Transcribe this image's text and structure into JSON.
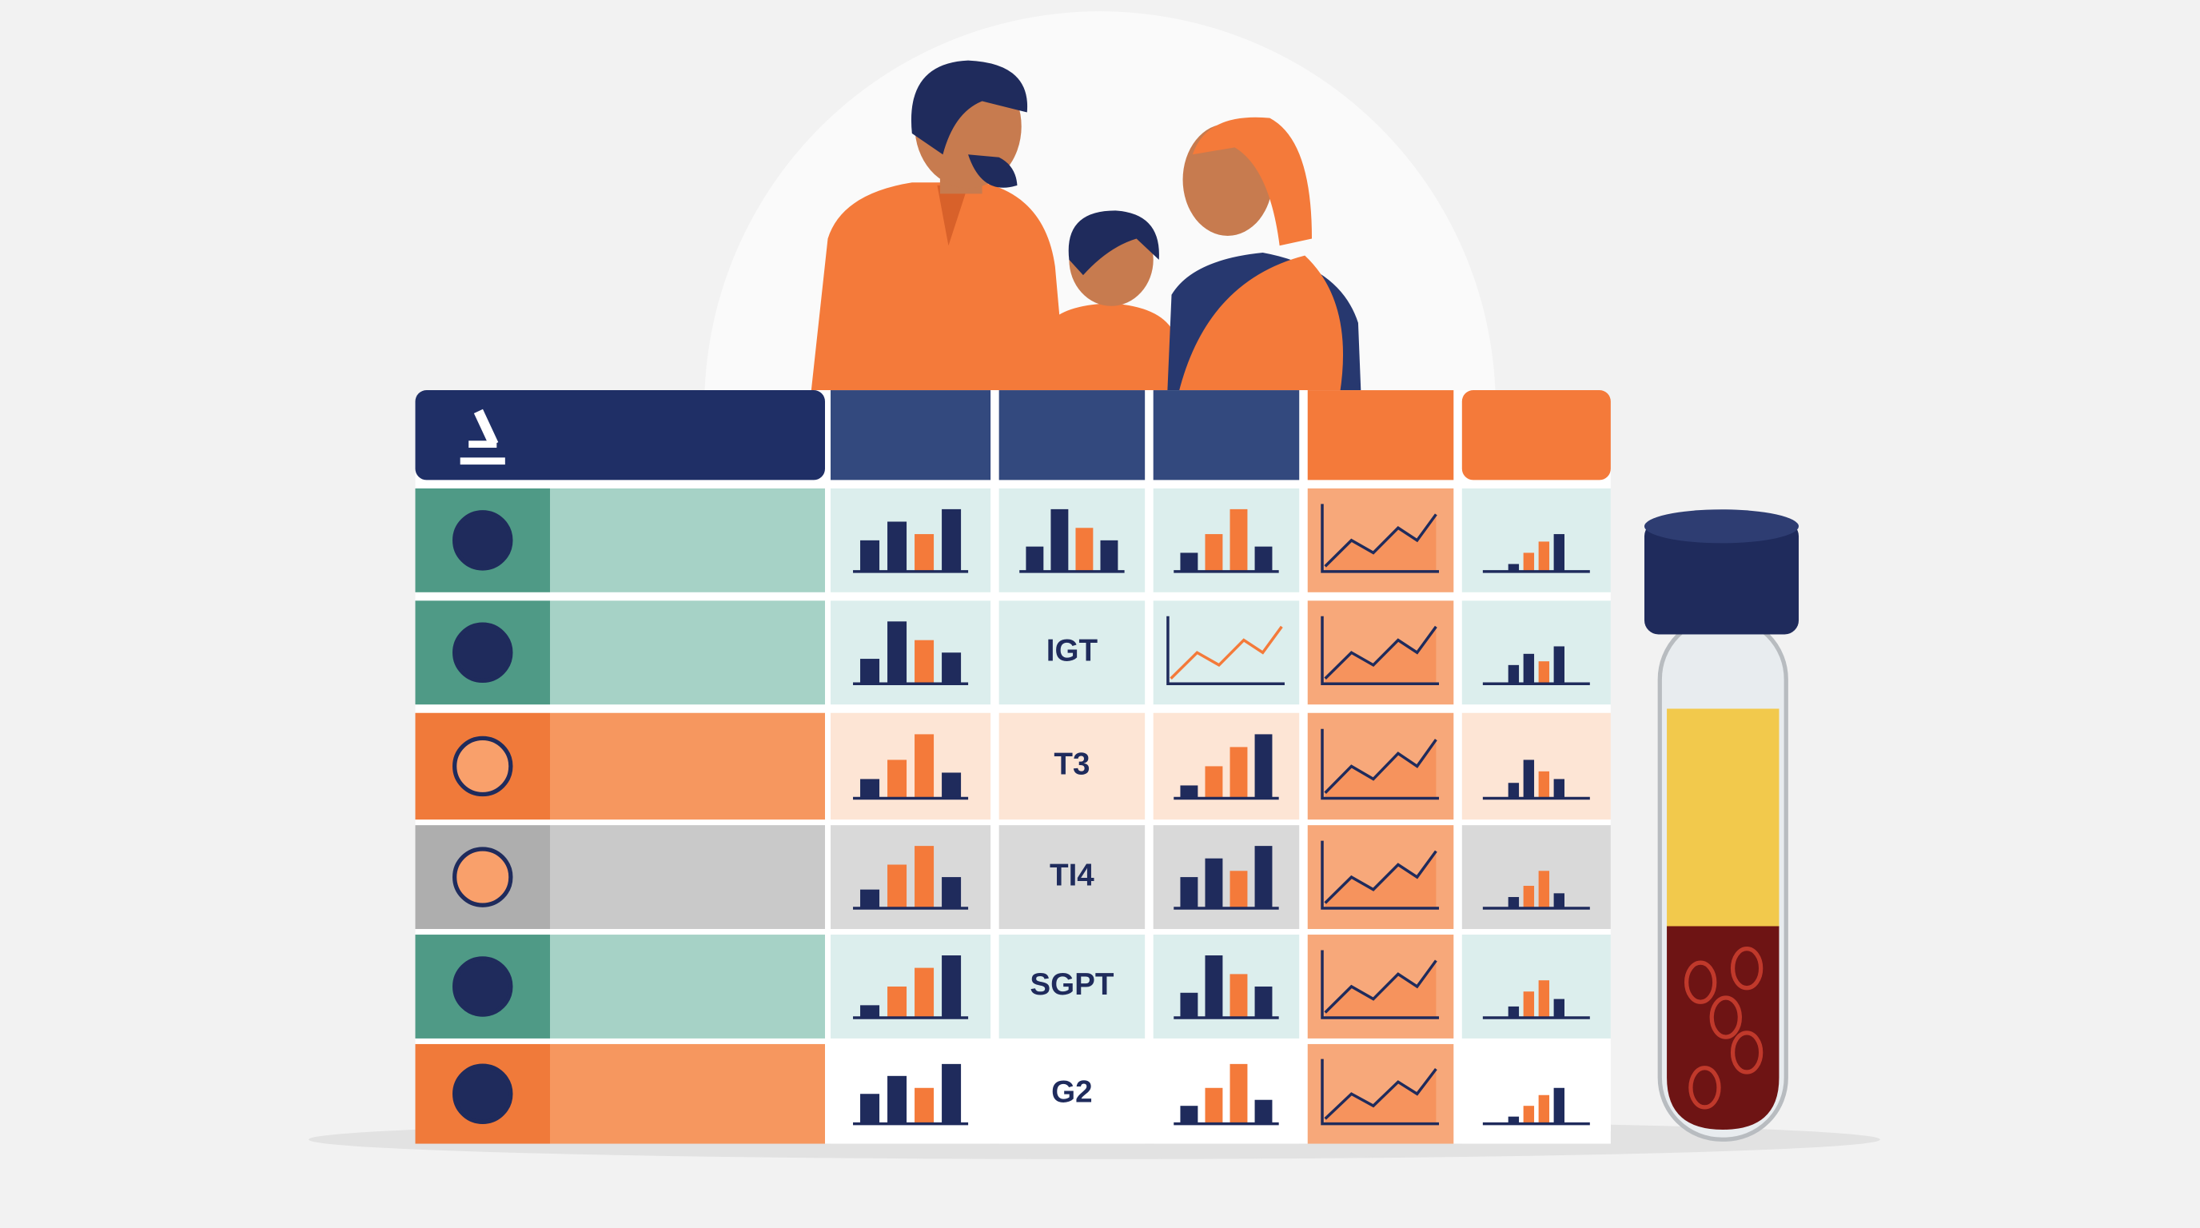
{
  "table": {
    "codes": [
      "IGT",
      "T3",
      "TI4",
      "SGPT",
      "G2"
    ]
  }
}
